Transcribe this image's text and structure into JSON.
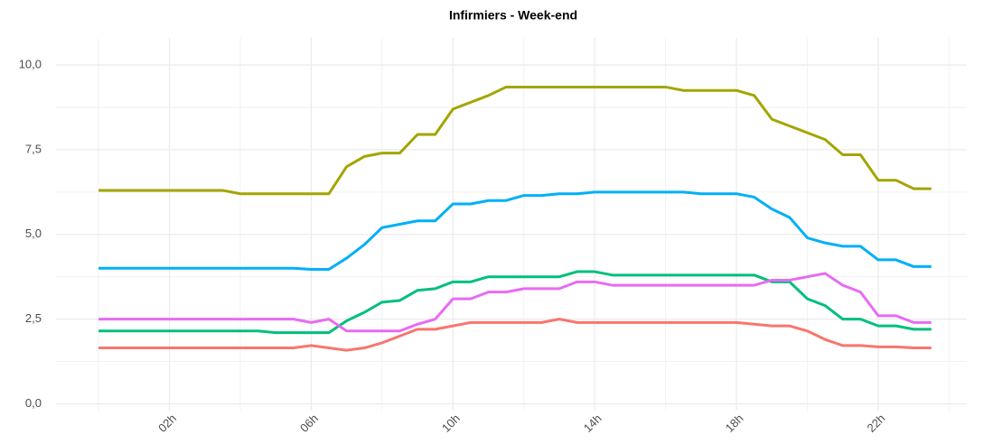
{
  "chart_data": {
    "type": "line",
    "title": "Infirmiers - Week-end",
    "x": [
      0,
      0.5,
      1,
      1.5,
      2,
      2.5,
      3,
      3.5,
      4,
      4.5,
      5,
      5.5,
      6,
      6.5,
      7,
      7.5,
      8,
      8.5,
      9,
      9.5,
      10,
      10.5,
      11,
      11.5,
      12,
      12.5,
      13,
      13.5,
      14,
      14.5,
      15,
      15.5,
      16,
      16.5,
      17,
      17.5,
      18,
      18.5,
      19,
      19.5,
      20,
      20.5,
      21,
      21.5,
      22,
      22.5,
      23,
      23.5
    ],
    "series": [
      {
        "color": "#a3a500",
        "values": [
          6.3,
          6.3,
          6.3,
          6.3,
          6.3,
          6.3,
          6.3,
          6.3,
          6.2,
          6.2,
          6.2,
          6.2,
          6.2,
          6.2,
          7.0,
          7.3,
          7.4,
          7.4,
          7.95,
          7.95,
          8.7,
          8.9,
          9.1,
          9.35,
          9.35,
          9.35,
          9.35,
          9.35,
          9.35,
          9.35,
          9.35,
          9.35,
          9.35,
          9.25,
          9.25,
          9.25,
          9.25,
          9.1,
          8.4,
          8.2,
          8.0,
          7.8,
          7.35,
          7.35,
          6.6,
          6.6,
          6.35,
          6.35
        ]
      },
      {
        "color": "#00b0f6",
        "values": [
          4.0,
          4.0,
          4.0,
          4.0,
          4.0,
          4.0,
          4.0,
          4.0,
          4.0,
          4.0,
          4.0,
          4.0,
          3.97,
          3.97,
          4.3,
          4.7,
          5.2,
          5.3,
          5.4,
          5.4,
          5.9,
          5.9,
          6.0,
          6.0,
          6.15,
          6.15,
          6.2,
          6.2,
          6.25,
          6.25,
          6.25,
          6.25,
          6.25,
          6.25,
          6.2,
          6.2,
          6.2,
          6.1,
          5.75,
          5.5,
          4.9,
          4.75,
          4.65,
          4.65,
          4.25,
          4.25,
          4.05,
          4.05
        ]
      },
      {
        "color": "#00bf7d",
        "values": [
          2.15,
          2.15,
          2.15,
          2.15,
          2.15,
          2.15,
          2.15,
          2.15,
          2.15,
          2.15,
          2.1,
          2.1,
          2.1,
          2.1,
          2.45,
          2.7,
          3.0,
          3.05,
          3.35,
          3.4,
          3.6,
          3.6,
          3.75,
          3.75,
          3.75,
          3.75,
          3.75,
          3.9,
          3.9,
          3.8,
          3.8,
          3.8,
          3.8,
          3.8,
          3.8,
          3.8,
          3.8,
          3.8,
          3.6,
          3.6,
          3.1,
          2.9,
          2.5,
          2.5,
          2.3,
          2.3,
          2.2,
          2.2
        ]
      },
      {
        "color": "#e76bf3",
        "values": [
          2.5,
          2.5,
          2.5,
          2.5,
          2.5,
          2.5,
          2.5,
          2.5,
          2.5,
          2.5,
          2.5,
          2.5,
          2.4,
          2.5,
          2.15,
          2.15,
          2.15,
          2.15,
          2.35,
          2.5,
          3.1,
          3.1,
          3.3,
          3.3,
          3.4,
          3.4,
          3.4,
          3.6,
          3.6,
          3.5,
          3.5,
          3.5,
          3.5,
          3.5,
          3.5,
          3.5,
          3.5,
          3.5,
          3.65,
          3.65,
          3.75,
          3.85,
          3.5,
          3.3,
          2.6,
          2.6,
          2.4,
          2.4
        ]
      },
      {
        "color": "#f8766d",
        "values": [
          1.65,
          1.65,
          1.65,
          1.65,
          1.65,
          1.65,
          1.65,
          1.65,
          1.65,
          1.65,
          1.65,
          1.65,
          1.72,
          1.65,
          1.58,
          1.65,
          1.8,
          2.0,
          2.2,
          2.2,
          2.3,
          2.4,
          2.4,
          2.4,
          2.4,
          2.4,
          2.5,
          2.4,
          2.4,
          2.4,
          2.4,
          2.4,
          2.4,
          2.4,
          2.4,
          2.4,
          2.4,
          2.35,
          2.3,
          2.3,
          2.15,
          1.9,
          1.72,
          1.72,
          1.68,
          1.68,
          1.65,
          1.65
        ]
      }
    ],
    "xlim": [
      -1.2,
      24.5
    ],
    "xticks": [
      {
        "value": 2,
        "label": "02h"
      },
      {
        "value": 6,
        "label": "06h"
      },
      {
        "value": 10,
        "label": "10h"
      },
      {
        "value": 14,
        "label": "14h"
      },
      {
        "value": 18,
        "label": "18h"
      },
      {
        "value": 22,
        "label": "22h"
      }
    ],
    "ylim": [
      -0.2,
      10.8
    ],
    "yticks": [
      {
        "value": 0,
        "label": "0,0"
      },
      {
        "value": 2.5,
        "label": "2,5"
      },
      {
        "value": 5,
        "label": "5,0"
      },
      {
        "value": 7.5,
        "label": "7,5"
      },
      {
        "value": 10,
        "label": "10,0"
      }
    ],
    "grid": true
  }
}
